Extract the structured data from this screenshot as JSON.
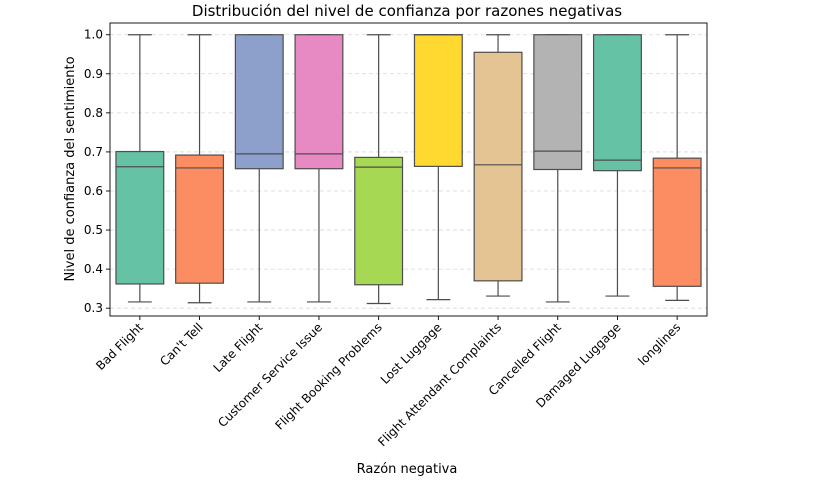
{
  "chart_data": {
    "type": "boxplot",
    "title": "Distribución del nivel de confianza por razones negativas",
    "xlabel": "Razón negativa",
    "ylabel": "Nivel de confianza del sentimiento",
    "ylim": [
      0.28,
      1.03
    ],
    "yticks": [
      0.3,
      0.4,
      0.5,
      0.6,
      0.7,
      0.8,
      0.9,
      1.0
    ],
    "grid": true,
    "categories": [
      "Bad Flight",
      "Can't Tell",
      "Late Flight",
      "Customer Service Issue",
      "Flight Booking Problems",
      "Lost Luggage",
      "Flight Attendant Complaints",
      "Cancelled Flight",
      "Damaged Luggage",
      "longlines"
    ],
    "boxes": [
      {
        "min": 0.316,
        "q1": 0.362,
        "median": 0.662,
        "q3": 0.701,
        "max": 1.0,
        "color": "#66c2a5"
      },
      {
        "min": 0.314,
        "q1": 0.364,
        "median": 0.659,
        "q3": 0.692,
        "max": 1.0,
        "color": "#fc8d62"
      },
      {
        "min": 0.316,
        "q1": 0.657,
        "median": 0.695,
        "q3": 1.0,
        "max": 1.0,
        "color": "#8da0cb"
      },
      {
        "min": 0.316,
        "q1": 0.657,
        "median": 0.695,
        "q3": 1.0,
        "max": 1.0,
        "color": "#e78ac3"
      },
      {
        "min": 0.312,
        "q1": 0.36,
        "median": 0.661,
        "q3": 0.686,
        "max": 1.0,
        "color": "#a6d854"
      },
      {
        "min": 0.322,
        "q1": 0.663,
        "median": 1.0,
        "q3": 1.0,
        "max": 1.0,
        "color": "#ffd92f"
      },
      {
        "min": 0.331,
        "q1": 0.37,
        "median": 0.667,
        "q3": 0.955,
        "max": 1.0,
        "color": "#e5c494"
      },
      {
        "min": 0.316,
        "q1": 0.655,
        "median": 0.702,
        "q3": 1.0,
        "max": 1.0,
        "color": "#b3b3b3"
      },
      {
        "min": 0.331,
        "q1": 0.652,
        "median": 0.679,
        "q3": 1.0,
        "max": 1.0,
        "color": "#66c2a5"
      },
      {
        "min": 0.32,
        "q1": 0.356,
        "median": 0.659,
        "q3": 0.684,
        "max": 1.0,
        "color": "#fc8d62"
      }
    ]
  }
}
